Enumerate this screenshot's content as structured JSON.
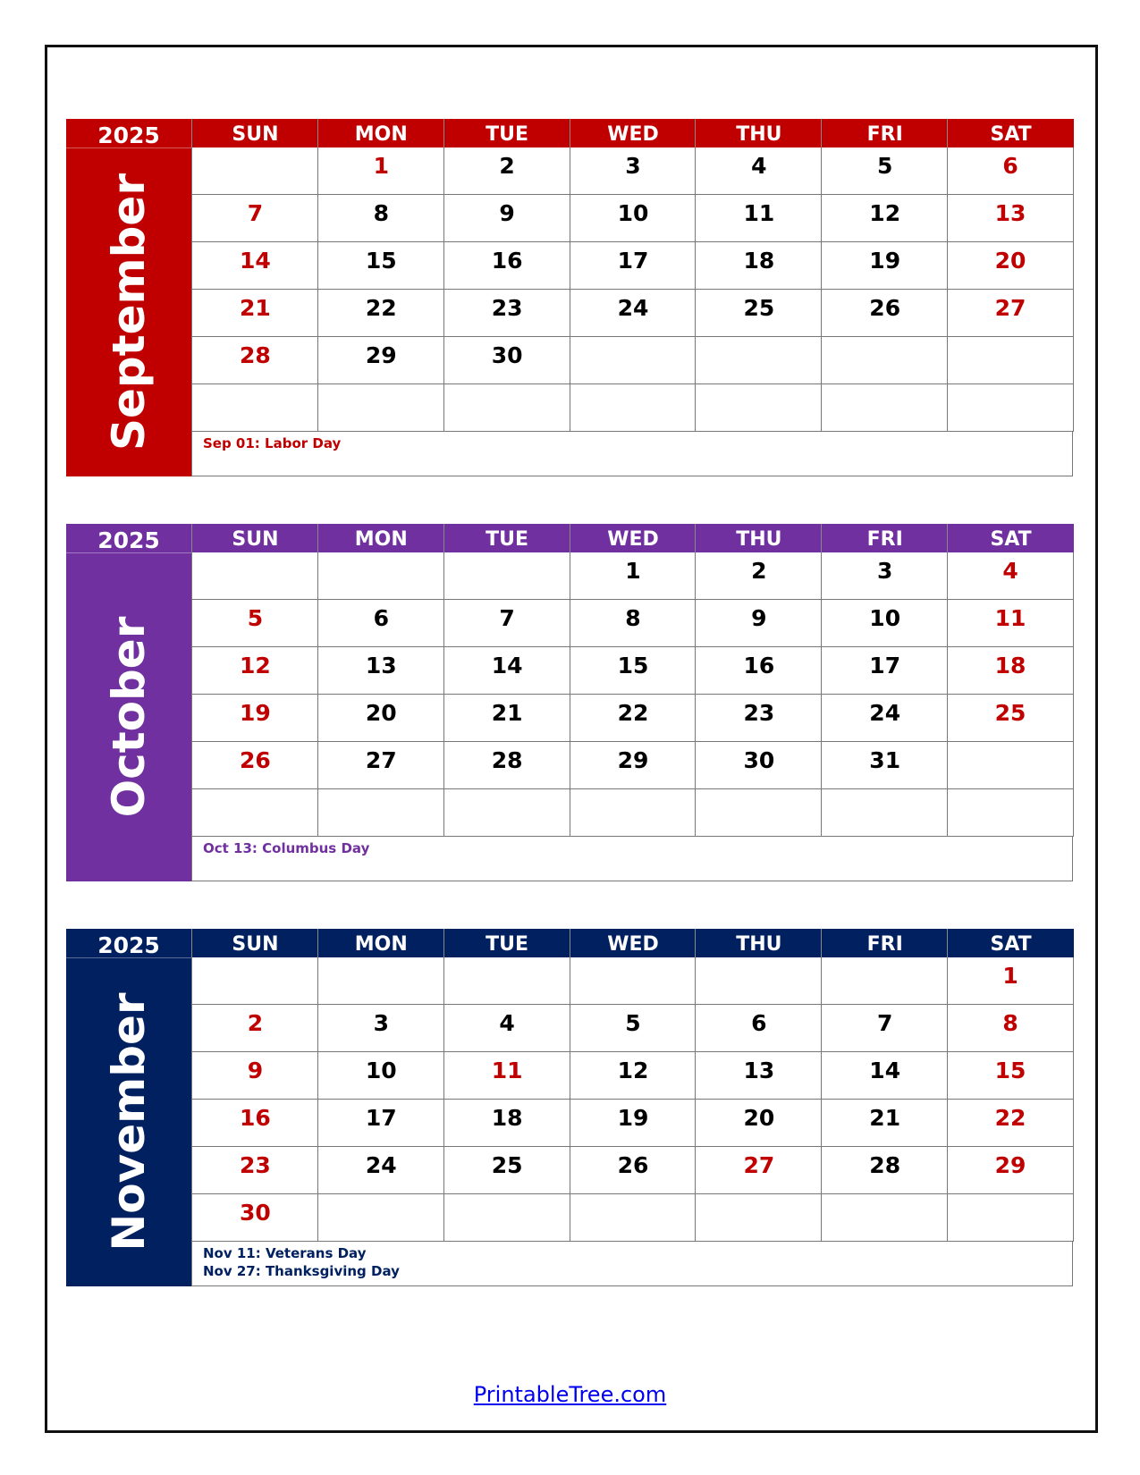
{
  "weekday_headers": [
    "SUN",
    "MON",
    "TUE",
    "WED",
    "THU",
    "FRI",
    "SAT"
  ],
  "months": [
    {
      "year": "2025",
      "name": "September",
      "color": "#c00000",
      "weeks": [
        [
          null,
          1,
          2,
          3,
          4,
          5,
          6
        ],
        [
          7,
          8,
          9,
          10,
          11,
          12,
          13
        ],
        [
          14,
          15,
          16,
          17,
          18,
          19,
          20
        ],
        [
          21,
          22,
          23,
          24,
          25,
          26,
          27
        ],
        [
          28,
          29,
          30,
          null,
          null,
          null,
          null
        ],
        [
          null,
          null,
          null,
          null,
          null,
          null,
          null
        ]
      ],
      "red_days": [
        1,
        6,
        7,
        13,
        14,
        20,
        21,
        27,
        28
      ],
      "notes": [
        "Sep 01: Labor Day"
      ]
    },
    {
      "year": "2025",
      "name": "October",
      "color": "#7030a0",
      "weeks": [
        [
          null,
          null,
          null,
          1,
          2,
          3,
          4
        ],
        [
          5,
          6,
          7,
          8,
          9,
          10,
          11
        ],
        [
          12,
          13,
          14,
          15,
          16,
          17,
          18
        ],
        [
          19,
          20,
          21,
          22,
          23,
          24,
          25
        ],
        [
          26,
          27,
          28,
          29,
          30,
          31,
          null
        ],
        [
          null,
          null,
          null,
          null,
          null,
          null,
          null
        ]
      ],
      "red_days": [
        4,
        5,
        11,
        12,
        18,
        19,
        25,
        26
      ],
      "notes": [
        "Oct 13: Columbus Day"
      ]
    },
    {
      "year": "2025",
      "name": "November",
      "color": "#002060",
      "weeks": [
        [
          null,
          null,
          null,
          null,
          null,
          null,
          1
        ],
        [
          2,
          3,
          4,
          5,
          6,
          7,
          8
        ],
        [
          9,
          10,
          11,
          12,
          13,
          14,
          15
        ],
        [
          16,
          17,
          18,
          19,
          20,
          21,
          22
        ],
        [
          23,
          24,
          25,
          26,
          27,
          28,
          29
        ],
        [
          30,
          null,
          null,
          null,
          null,
          null,
          null
        ]
      ],
      "red_days": [
        1,
        2,
        8,
        9,
        11,
        15,
        16,
        22,
        23,
        27,
        29,
        30
      ],
      "notes": [
        "Nov 11: Veterans Day",
        "Nov 27: Thanksgiving Day"
      ]
    }
  ],
  "footer": {
    "link": "PrintableTree.com",
    "link_color": "#0000ee"
  }
}
